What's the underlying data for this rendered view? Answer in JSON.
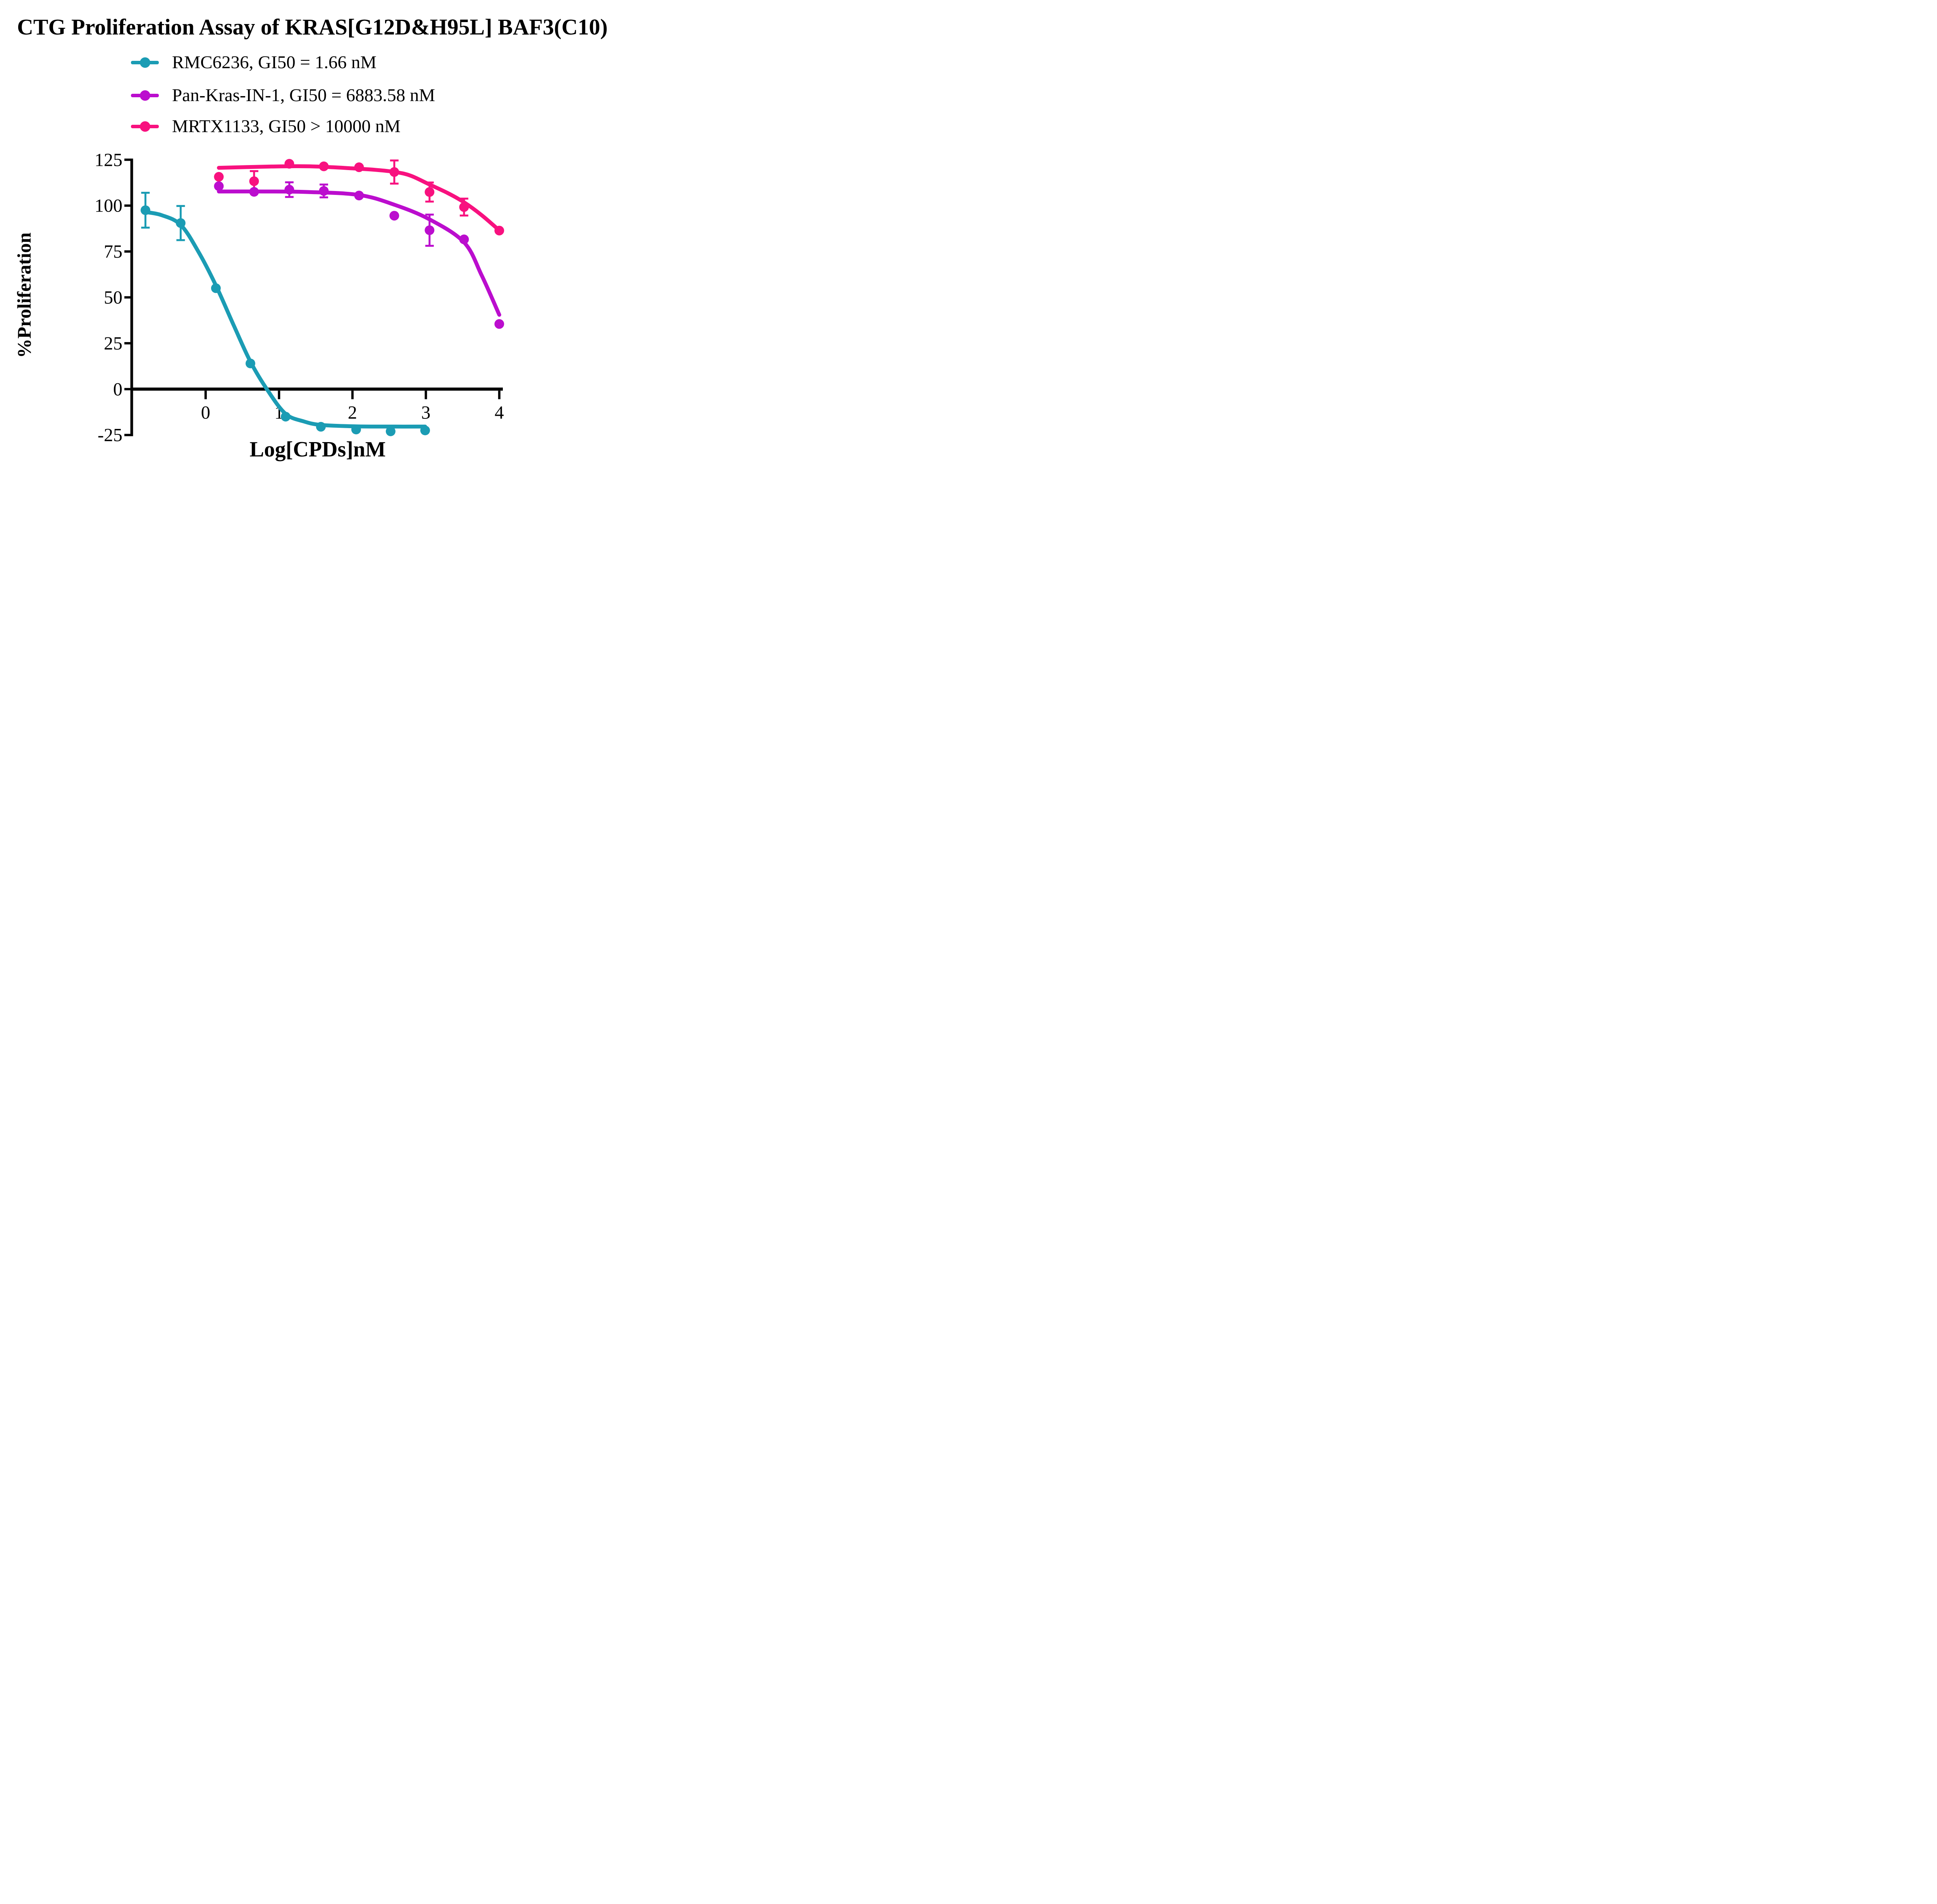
{
  "title": "CTG Proliferation Assay of KRAS[G12D&H95L] BAF3(C10)",
  "legend": {
    "items": [
      {
        "label": "RMC6236, GI50 = 1.66 nM",
        "color": "#1B9CB4",
        "series": "RMC6236"
      },
      {
        "label": "Pan-Kras-IN-1, GI50 = 6883.58 nM",
        "color": "#BB0DCE",
        "series": "Pan-Kras-IN-1"
      },
      {
        "label": "MRTX1133, GI50 > 10000 nM",
        "color": "#F8117F",
        "series": "MRTX1133"
      }
    ]
  },
  "chart_data": {
    "type": "scatter",
    "title": "CTG Proliferation Assay of KRAS[G12D&H95L] BAF3(C10)",
    "xlabel": "Log[CPDs]nM",
    "ylabel": "%Proliferation",
    "xlim": [
      -1.0,
      4.05
    ],
    "ylim": [
      -25,
      125
    ],
    "x_ticks": [
      0,
      1,
      2,
      3,
      4
    ],
    "y_ticks": [
      125,
      100,
      75,
      50,
      25,
      0,
      -25
    ],
    "grid": false,
    "legend_position": "top-left",
    "series": [
      {
        "name": "RMC6236",
        "gi50_label": "GI50 = 1.66 nM",
        "color": "#1B9CB4",
        "x": [
          -0.82,
          -0.34,
          0.14,
          0.61,
          1.09,
          1.57,
          2.05,
          2.52,
          2.99
        ],
        "y": [
          97.5,
          90.5,
          55,
          14,
          -15,
          -20.5,
          -22,
          -23,
          -22.5
        ],
        "yerr": [
          9.5,
          9.3,
          0,
          0,
          0,
          0,
          0,
          0,
          0
        ],
        "fit_curve": [
          [
            -0.82,
            96.5
          ],
          [
            -0.6,
            94.8
          ],
          [
            -0.34,
            89.5
          ],
          [
            -0.1,
            75
          ],
          [
            0.14,
            56.5
          ],
          [
            0.38,
            35
          ],
          [
            0.61,
            15
          ],
          [
            0.85,
            -1
          ],
          [
            1.09,
            -13.5
          ],
          [
            1.33,
            -17.5
          ],
          [
            1.57,
            -19.5
          ],
          [
            2.05,
            -20.3
          ],
          [
            2.52,
            -20.4
          ],
          [
            2.99,
            -20.4
          ]
        ]
      },
      {
        "name": "MRTX1133",
        "gi50_label": "GI50 > 10000 nM",
        "color": "#F8117F",
        "x": [
          0.18,
          0.66,
          1.14,
          1.61,
          2.09,
          2.57,
          3.05,
          3.52,
          4.0
        ],
        "y": [
          115.7,
          113.3,
          122.8,
          121.4,
          120.9,
          118.3,
          107.4,
          99.2,
          86.4
        ],
        "yerr": [
          0,
          5.5,
          0,
          0,
          0,
          6.3,
          5.2,
          4.6,
          0
        ],
        "fit_curve": [
          [
            0.18,
            120.6
          ],
          [
            0.9,
            121.3
          ],
          [
            1.42,
            121.4
          ],
          [
            2.0,
            120.3
          ],
          [
            2.34,
            119.4
          ],
          [
            2.6,
            118.2
          ],
          [
            2.8,
            116.2
          ],
          [
            3.05,
            111.5
          ],
          [
            3.3,
            106.8
          ],
          [
            3.52,
            101.8
          ],
          [
            3.76,
            94.8
          ],
          [
            4.0,
            86.5
          ]
        ]
      },
      {
        "name": "Pan-Kras-IN-1",
        "gi50_label": "GI50 = 6883.58 nM",
        "color": "#BB0DCE",
        "x": [
          0.18,
          0.66,
          1.14,
          1.61,
          2.09,
          2.57,
          3.05,
          3.52,
          4.0
        ],
        "y": [
          110.6,
          107.5,
          108.7,
          108,
          105.5,
          94.5,
          86.6,
          81.6,
          35.5
        ],
        "yerr": [
          0,
          0,
          4,
          3.5,
          0,
          0,
          8.5,
          0,
          0
        ],
        "fit_curve": [
          [
            0.18,
            107.7
          ],
          [
            0.8,
            107.7
          ],
          [
            1.4,
            107.4
          ],
          [
            2.09,
            105.8
          ],
          [
            2.57,
            100.5
          ],
          [
            3.05,
            92.5
          ],
          [
            3.52,
            80
          ],
          [
            3.76,
            62
          ],
          [
            4.0,
            40.5
          ]
        ]
      }
    ]
  }
}
